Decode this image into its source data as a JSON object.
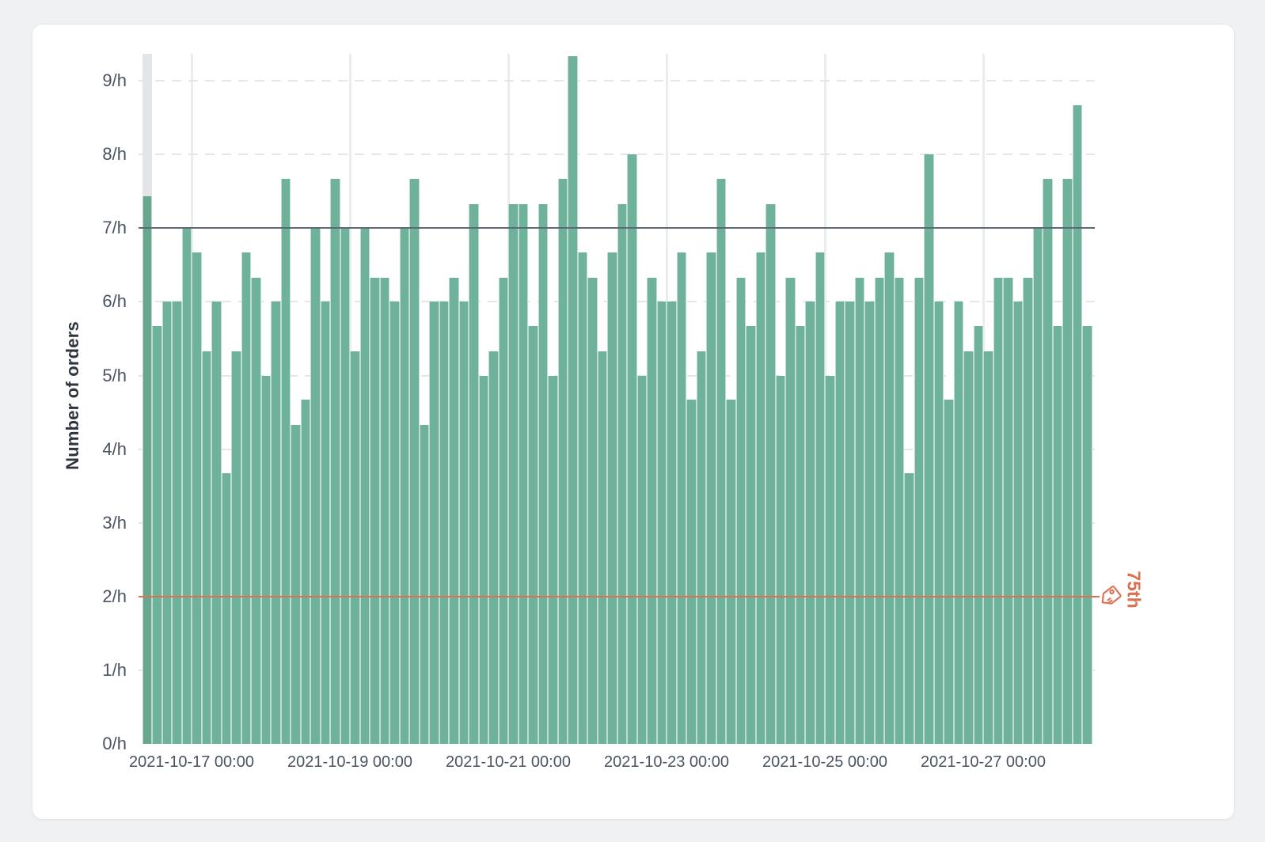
{
  "chart_data": {
    "type": "bar",
    "title": "",
    "ylabel": "Number of orders",
    "xlabel": "",
    "ylim": [
      0,
      9.37
    ],
    "grid": "horizontal-dashed and vertical ticks",
    "legend": "none",
    "y_ticks": [
      {
        "value": 0,
        "label": "0/h"
      },
      {
        "value": 1,
        "label": "1/h"
      },
      {
        "value": 2,
        "label": "2/h"
      },
      {
        "value": 3,
        "label": "3/h"
      },
      {
        "value": 4,
        "label": "4/h"
      },
      {
        "value": 5,
        "label": "5/h"
      },
      {
        "value": 6,
        "label": "6/h"
      },
      {
        "value": 7,
        "label": "7/h"
      },
      {
        "value": 8,
        "label": "8/h"
      },
      {
        "value": 9,
        "label": "9/h"
      }
    ],
    "x_ticks": [
      {
        "label": "2021-10-17 00:00",
        "boundary_index": 5
      },
      {
        "label": "2021-10-19 00:00",
        "boundary_index": 21
      },
      {
        "label": "2021-10-21 00:00",
        "boundary_index": 37
      },
      {
        "label": "2021-10-23 00:00",
        "boundary_index": 53
      },
      {
        "label": "2021-10-25 00:00",
        "boundary_index": 69
      },
      {
        "label": "2021-10-27 00:00",
        "boundary_index": 85
      }
    ],
    "bucket_hours": 3,
    "values": [
      7.43,
      5.67,
      6.0,
      6.0,
      7.0,
      6.67,
      5.33,
      6.0,
      3.67,
      5.33,
      6.67,
      6.33,
      5.0,
      6.0,
      7.67,
      4.33,
      4.67,
      7.0,
      6.0,
      7.67,
      7.0,
      5.33,
      7.0,
      6.33,
      6.33,
      6.0,
      7.0,
      7.67,
      4.33,
      6.0,
      6.0,
      6.33,
      6.0,
      7.33,
      5.0,
      5.33,
      6.33,
      7.33,
      7.33,
      5.67,
      7.33,
      5.0,
      7.67,
      9.33,
      6.67,
      6.33,
      5.33,
      6.67,
      7.33,
      8.0,
      5.0,
      6.33,
      6.0,
      6.0,
      6.67,
      4.67,
      5.33,
      6.67,
      7.67,
      4.67,
      6.33,
      5.67,
      6.67,
      7.33,
      5.0,
      6.33,
      5.67,
      6.0,
      6.67,
      5.0,
      6.0,
      6.0,
      6.33,
      6.0,
      6.33,
      6.67,
      6.33,
      3.67,
      6.33,
      8.0,
      6.0,
      4.67,
      6.0,
      5.33,
      5.67,
      5.33,
      6.33,
      6.33,
      6.0,
      6.33,
      7.0,
      7.67,
      5.67,
      7.67,
      8.67,
      5.67
    ],
    "highlighted_bar_index": 0,
    "reference_lines": [
      {
        "value": 7,
        "color": "#5f6875",
        "label": "",
        "style": "solid"
      },
      {
        "value": 2,
        "color": "#df7150",
        "label": "75th",
        "style": "solid",
        "icon": "tag-icon"
      }
    ],
    "colors": {
      "bar": "#6fb29c",
      "bar_highlighted": "#67a78f",
      "highlight_band": "#e3e5e9",
      "grid_horizontal": "#e4e6ea",
      "grid_vertical": "#eaecef",
      "reference_dark": "#5f6875",
      "accent_orange": "#df7150",
      "percentile_text": "#dc6f4e",
      "axis_text": "#4a5361",
      "axis_title": "#2e3540",
      "page_bg": "#eff1f3",
      "card_bg": "#ffffff",
      "card_border": "#e5e8eb"
    }
  }
}
